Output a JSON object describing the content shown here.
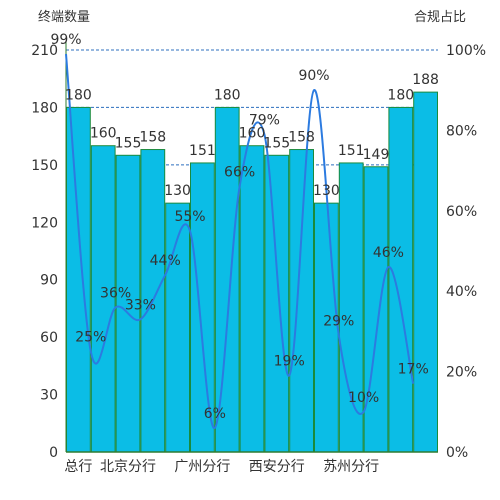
{
  "chart_data": {
    "type": "bar",
    "categories": [
      "总行",
      "",
      "北京分行",
      "",
      "",
      "广州分行",
      "",
      "",
      "西安分行",
      "",
      "",
      "苏州分行",
      "",
      "",
      ""
    ],
    "y_left_label": "终端数量",
    "y_right_label": "合规占比",
    "y_left_ticks": [
      "0",
      "30",
      "60",
      "90",
      "120",
      "150",
      "180",
      "210"
    ],
    "y_right_ticks": [
      "0%",
      "20%",
      "40%",
      "60%",
      "80%",
      "100%"
    ],
    "ylim_left": [
      0,
      210
    ],
    "ylim_right": [
      0,
      100
    ],
    "grid": "dashed lines at 150, 180 and 210 on left axis",
    "series": [
      {
        "type": "bar",
        "values": [
          180,
          160,
          155,
          158,
          130,
          151,
          180,
          160,
          155,
          158,
          130,
          151,
          149,
          180,
          188
        ],
        "labels": [
          "180",
          "160",
          "155",
          "158",
          "130",
          "151",
          "180",
          "160",
          "155",
          "158",
          "130",
          "151",
          "149",
          "180",
          "188"
        ]
      },
      {
        "type": "line",
        "axis": "right",
        "values": [
          99,
          25,
          36,
          33,
          44,
          55,
          6,
          66,
          79,
          19,
          90,
          29,
          10,
          46,
          17
        ],
        "labels": [
          "99%",
          "25%",
          "36%",
          "33%",
          "44%",
          "55%",
          "6%",
          "66%",
          "79%",
          "19%",
          "90%",
          "29%",
          "10%",
          "46%",
          "17%"
        ]
      }
    ],
    "colors": {
      "bar_fill": "#0bbde6",
      "bar_stroke": "#1a8a3c",
      "line": "#2c7be0",
      "grid": "#2c6fbf",
      "axis": "#2e7d32",
      "text": "#333333"
    }
  }
}
